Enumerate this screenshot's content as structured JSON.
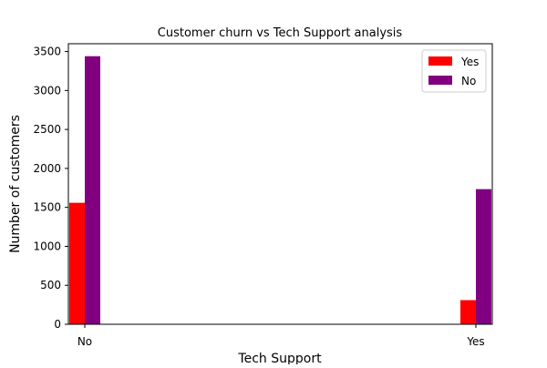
{
  "chart_data": {
    "type": "bar",
    "title": "Customer churn vs Tech Support analysis",
    "xlabel": "Tech Support",
    "ylabel": "Number of customers",
    "categories": [
      "No",
      "Yes"
    ],
    "series": [
      {
        "name": "Yes",
        "color": "#ff0000",
        "values": [
          1559,
          310
        ]
      },
      {
        "name": "No",
        "color": "#800080",
        "values": [
          3440,
          1734
        ]
      }
    ],
    "ylim": [
      0,
      3600
    ],
    "yticks": [
      0,
      500,
      1000,
      1500,
      2000,
      2500,
      3000,
      3500
    ],
    "grid": false,
    "legend_position": "top-right"
  }
}
